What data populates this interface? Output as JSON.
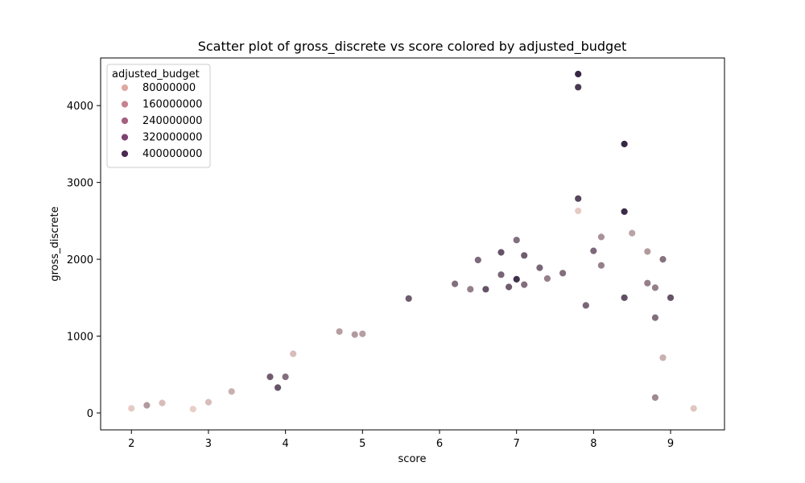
{
  "chart_data": {
    "type": "scatter",
    "title": "Scatter plot of gross_discrete vs score colored by adjusted_budget",
    "xlabel": "score",
    "ylabel": "gross_discrete",
    "xlim": [
      1.6,
      9.7
    ],
    "ylim": [
      -220,
      4620
    ],
    "x_ticks": [
      2,
      3,
      4,
      5,
      6,
      7,
      8,
      9
    ],
    "y_ticks": [
      0,
      1000,
      2000,
      3000,
      4000
    ],
    "grid": false,
    "legend": {
      "title": "adjusted_budget",
      "placement": "top-left",
      "entries": [
        {
          "label": "80000000",
          "color": "#e0a8a3"
        },
        {
          "label": "160000000",
          "color": "#c6828f"
        },
        {
          "label": "240000000",
          "color": "#a4607e"
        },
        {
          "label": "320000000",
          "color": "#7d4370"
        },
        {
          "label": "400000000",
          "color": "#4a2a52"
        }
      ]
    },
    "color_scale": {
      "budget_min": 0,
      "budget_max": 420000000,
      "color_low": "#f3d8cf",
      "color_high": "#2d1e3e"
    },
    "series": [
      {
        "x": [
          7.8,
          7.8,
          8.4,
          7.8,
          8.4,
          7.8,
          8.5,
          8.1,
          7.0,
          8.7,
          8.0,
          8.9,
          7.1,
          6.5,
          6.8,
          8.1,
          7.3,
          5.6,
          6.2,
          7.1,
          7.0,
          9.0,
          8.7,
          8.8,
          6.6,
          8.8,
          8.4,
          4.7,
          5.0,
          4.9,
          4.1,
          3.8,
          4.0,
          3.9,
          9.3,
          8.9,
          8.8,
          2.2,
          2.0,
          3.0,
          3.3,
          2.4,
          2.8,
          6.8,
          6.9,
          6.4,
          7.4,
          7.6,
          7.9
        ],
        "y": [
          4410,
          4240,
          3500,
          2790,
          2620,
          2630,
          2340,
          2290,
          2250,
          2100,
          2110,
          2000,
          2050,
          1990,
          2090,
          1920,
          1890,
          1490,
          1680,
          1670,
          1740,
          1500,
          1690,
          1630,
          1610,
          1240,
          1500,
          1060,
          1030,
          1020,
          770,
          470,
          470,
          330,
          60,
          720,
          200,
          100,
          60,
          140,
          280,
          130,
          50,
          1800,
          1640,
          1610,
          1750,
          1820,
          1400
        ],
        "budget": [
          400000000,
          360000000,
          400000000,
          330000000,
          390000000,
          30000000,
          120000000,
          160000000,
          240000000,
          140000000,
          250000000,
          230000000,
          280000000,
          250000000,
          300000000,
          200000000,
          260000000,
          280000000,
          240000000,
          240000000,
          380000000,
          300000000,
          200000000,
          200000000,
          300000000,
          240000000,
          310000000,
          130000000,
          130000000,
          140000000,
          60000000,
          280000000,
          240000000,
          300000000,
          40000000,
          90000000,
          180000000,
          140000000,
          30000000,
          60000000,
          90000000,
          60000000,
          20000000,
          260000000,
          280000000,
          200000000,
          200000000,
          240000000,
          260000000
        ]
      }
    ]
  }
}
